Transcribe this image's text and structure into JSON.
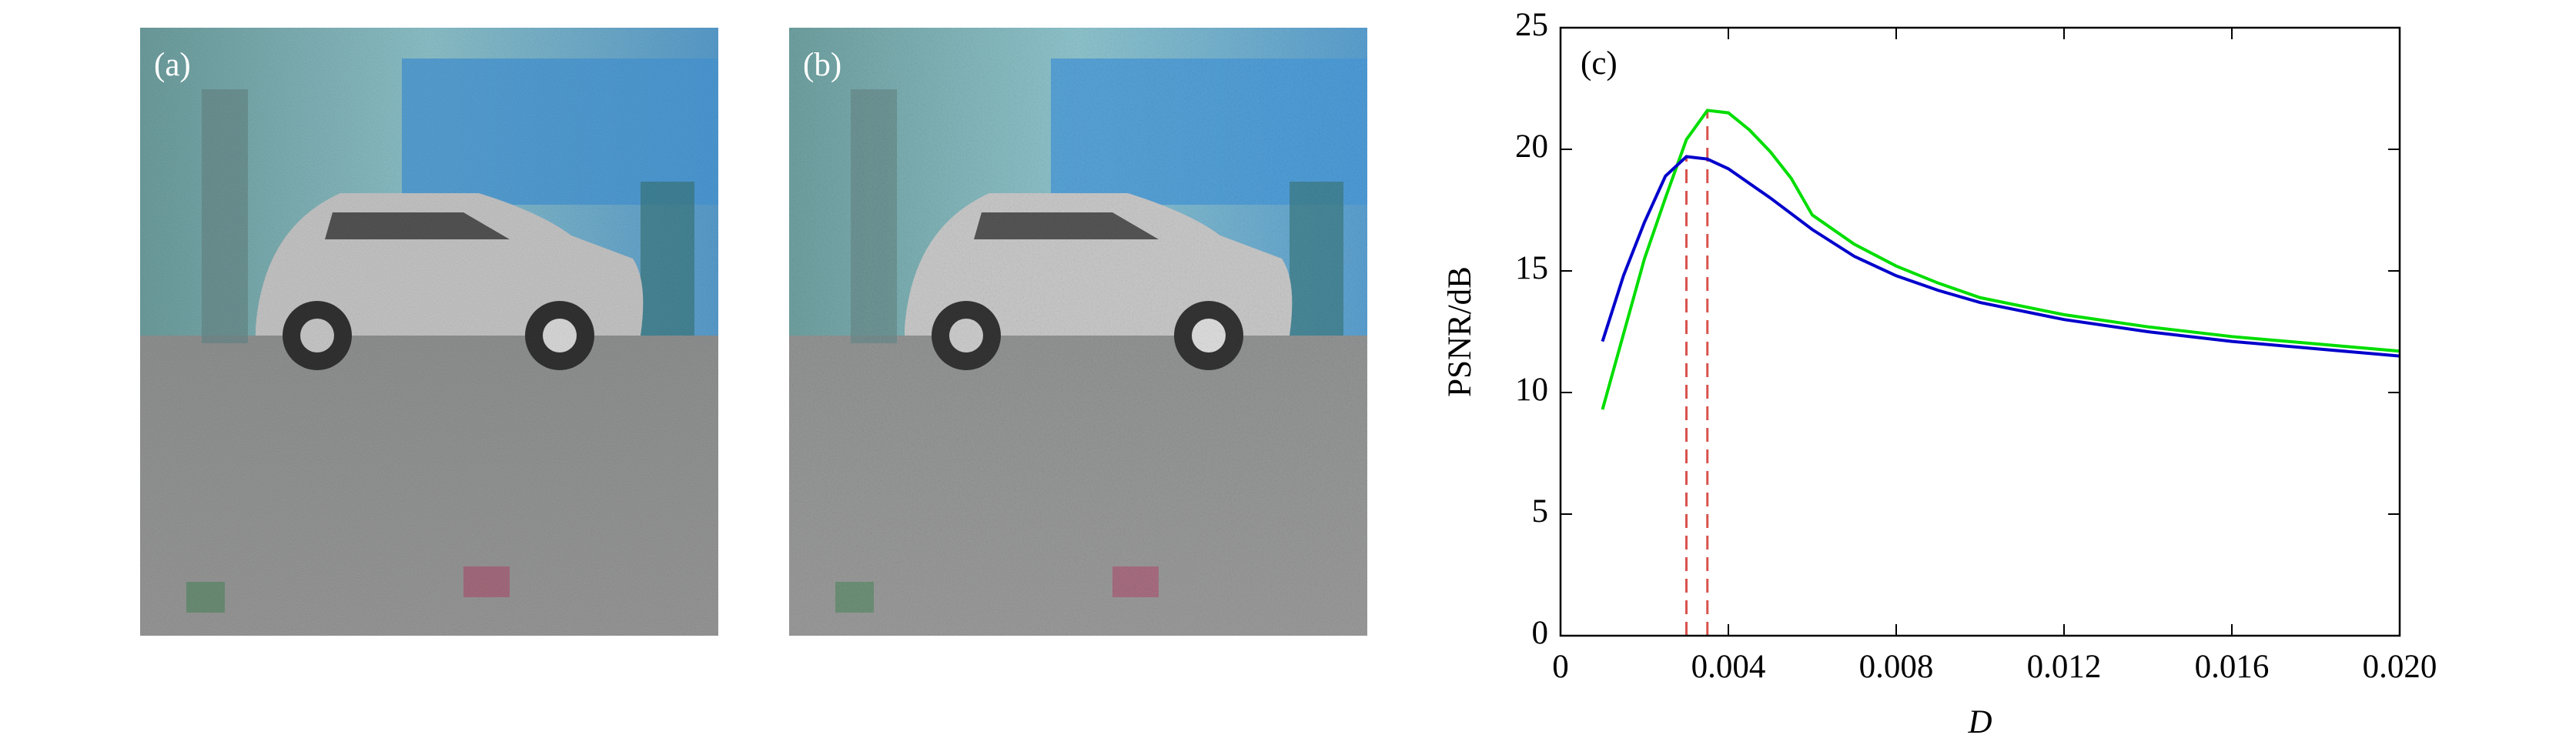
{
  "panels": [
    {
      "label": "(a)"
    },
    {
      "label": "(b)"
    }
  ],
  "chart_data": {
    "type": "line",
    "annotation": "(c)",
    "x_label": "D",
    "y_label": "PSNR/dB",
    "xlim": [
      0,
      0.02
    ],
    "xticks": [
      0,
      0.004,
      0.008,
      0.012,
      0.016,
      {
        "value": 0.02,
        "label": "0.020"
      }
    ],
    "ylim": [
      0,
      25
    ],
    "yticks": [
      0,
      5,
      10,
      15,
      20,
      25
    ],
    "series": [
      {
        "color": "#00dd00",
        "x": [
          0.001,
          0.002,
          0.0025,
          0.003,
          0.0035,
          0.004,
          0.0045,
          0.005,
          0.0055,
          0.006,
          0.007,
          0.008,
          0.009,
          0.01,
          0.012,
          0.014,
          0.016,
          0.018,
          0.02
        ],
        "values": [
          9.3,
          15.5,
          18.0,
          20.4,
          21.6,
          21.5,
          20.8,
          19.9,
          18.8,
          17.3,
          16.1,
          15.2,
          14.5,
          13.9,
          13.2,
          12.7,
          12.3,
          12.0,
          11.7
        ]
      },
      {
        "color": "#0000cc",
        "x": [
          0.001,
          0.0015,
          0.002,
          0.0025,
          0.003,
          0.0035,
          0.004,
          0.005,
          0.006,
          0.007,
          0.008,
          0.009,
          0.01,
          0.012,
          0.014,
          0.016,
          0.018,
          0.02
        ],
        "values": [
          12.1,
          14.8,
          17.0,
          18.9,
          19.7,
          19.6,
          19.2,
          18.0,
          16.7,
          15.6,
          14.8,
          14.2,
          13.7,
          13.0,
          12.5,
          12.1,
          11.8,
          11.5
        ]
      }
    ],
    "reference_lines": [
      {
        "x": 0.003,
        "y": 19.7
      },
      {
        "x": 0.0035,
        "y": 21.6
      }
    ],
    "reference_color": "#d9534f"
  }
}
